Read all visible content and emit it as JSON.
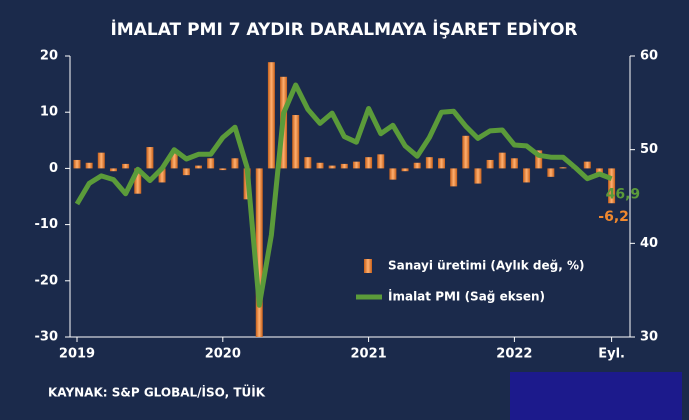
{
  "chart_data": {
    "type": "bar_line",
    "title": "İMALAT PMI 7 AYDIR DARALMAYA İŞARET EDİYOR",
    "source": "KAYNAK: S&P GLOBAL/İSO, TÜİK",
    "categories": [
      "2019",
      null,
      null,
      null,
      null,
      null,
      null,
      null,
      null,
      null,
      null,
      null,
      "2020",
      null,
      null,
      null,
      null,
      null,
      null,
      null,
      null,
      null,
      null,
      null,
      "2021",
      null,
      null,
      null,
      null,
      null,
      null,
      null,
      null,
      null,
      null,
      null,
      "2022",
      null,
      null,
      null,
      null,
      null,
      null,
      null,
      "Eyl."
    ],
    "series": [
      {
        "name": "Sanayi üretimi (Aylık değ, %)",
        "color": "#f0882e",
        "type": "bar",
        "values": [
          1.5,
          1,
          2.8,
          -0.5,
          0.8,
          -4.5,
          3.8,
          -2.5,
          3,
          -1.2,
          0.5,
          1.8,
          -0.3,
          1.8,
          -5.5,
          -30,
          18.9,
          16.3,
          9.5,
          2,
          1,
          0.5,
          0.8,
          1.2,
          2,
          2.5,
          -2,
          -0.5,
          1,
          2,
          1.8,
          -3.2,
          5.8,
          -2.7,
          1.5,
          2.8,
          1.8,
          -2.5,
          3.2,
          -1.5,
          0.2,
          0.2,
          1.2,
          -0.8,
          -6.2
        ],
        "value_labels": [
          null,
          null,
          null,
          null,
          null,
          null,
          null,
          null,
          null,
          null,
          null,
          null,
          null,
          null,
          null,
          null,
          null,
          null,
          null,
          null,
          null,
          null,
          null,
          null,
          null,
          null,
          null,
          null,
          null,
          null,
          null,
          null,
          null,
          null,
          null,
          null,
          null,
          null,
          null,
          null,
          null,
          null,
          null,
          null,
          "-6,2"
        ]
      },
      {
        "name": "İmalat PMI (Sağ eksen)",
        "color": "#5b9b3a",
        "type": "line",
        "axis": "y2",
        "values": [
          44.2,
          46.4,
          47.2,
          46.8,
          45.3,
          47.9,
          46.7,
          48.0,
          50.0,
          49.0,
          49.5,
          49.5,
          51.3,
          52.4,
          48.1,
          33.4,
          40.9,
          53.9,
          56.9,
          54.3,
          52.8,
          53.9,
          51.4,
          50.8,
          54.4,
          51.7,
          52.6,
          50.4,
          49.3,
          51.3,
          54.0,
          54.1,
          52.5,
          51.2,
          52.0,
          52.1,
          50.5,
          50.4,
          49.4,
          49.2,
          49.2,
          48.1,
          46.9,
          47.4,
          46.9
        ],
        "value_labels": [
          null,
          null,
          null,
          null,
          null,
          null,
          null,
          null,
          null,
          null,
          null,
          null,
          null,
          null,
          null,
          null,
          null,
          null,
          null,
          null,
          null,
          null,
          null,
          null,
          null,
          null,
          null,
          null,
          null,
          null,
          null,
          null,
          null,
          null,
          null,
          null,
          null,
          null,
          null,
          null,
          null,
          null,
          null,
          null,
          "46,9"
        ]
      }
    ],
    "ylim": [
      -30,
      20
    ],
    "yticks": [
      -30,
      -20,
      -10,
      0,
      10,
      20
    ],
    "y2lim": [
      30,
      60
    ],
    "y2ticks": [
      30,
      40,
      50,
      60
    ]
  }
}
